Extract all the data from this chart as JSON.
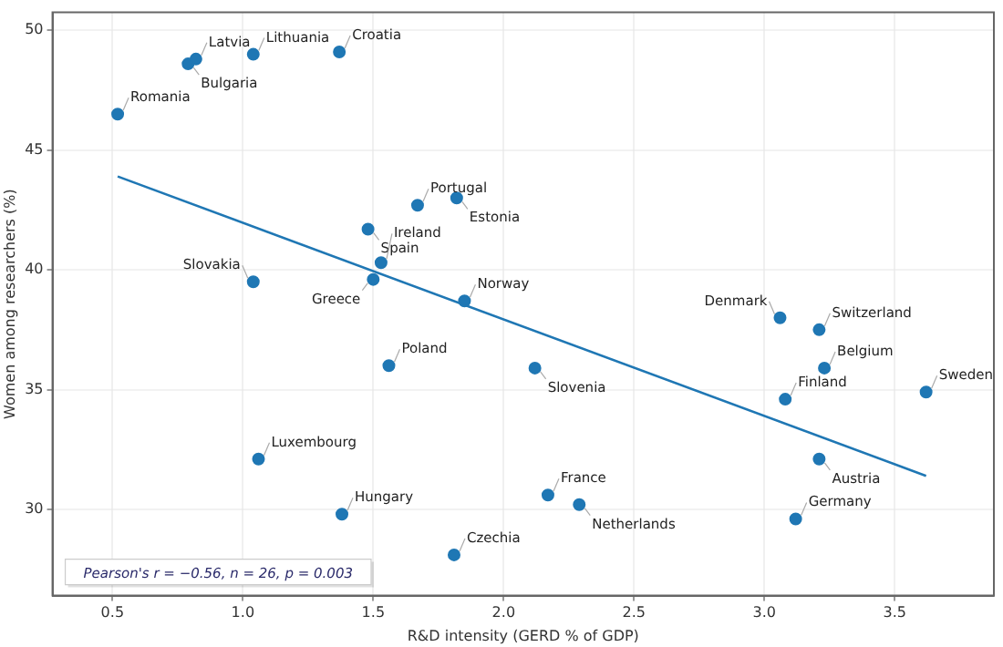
{
  "chart_data": {
    "type": "scatter",
    "xlabel": "R&D intensity (GERD % of GDP)",
    "ylabel": "Women among researchers (%)",
    "xlim": [
      0.27,
      3.88
    ],
    "ylim": [
      26.4,
      50.75
    ],
    "xticks": [
      0.5,
      {
        "value": 1,
        "label": "1.0"
      },
      1.5,
      {
        "value": 2,
        "label": "2.0"
      },
      2.5,
      {
        "value": 3,
        "label": "3.0"
      },
      3.5
    ],
    "yticks": [
      30,
      35,
      40,
      45,
      50
    ],
    "grid": true,
    "legend": false,
    "marker": "circle",
    "series": [
      {
        "type": "scatter",
        "color": "#1f77b4",
        "x": [
          0.52,
          0.79,
          0.82,
          1.04,
          1.37,
          1.67,
          1.82,
          1.48,
          1.53,
          1.5,
          1.04,
          1.85,
          1.56,
          1.06,
          1.38,
          1.81,
          2.12,
          2.17,
          2.29,
          3.12,
          3.21,
          3.08,
          3.23,
          3.21,
          3.06,
          3.62
        ],
        "values": [
          46.5,
          48.6,
          48.8,
          49.0,
          49.1,
          42.7,
          43.0,
          41.7,
          40.3,
          39.6,
          39.5,
          38.7,
          36.0,
          32.1,
          29.8,
          28.1,
          35.9,
          30.6,
          30.2,
          29.6,
          32.1,
          34.6,
          35.9,
          37.5,
          38.0,
          34.9
        ]
      },
      {
        "type": "line",
        "color": "#1f77b4",
        "marker": "none",
        "x": [
          0.52,
          3.62
        ],
        "values": [
          43.9,
          31.4
        ]
      }
    ],
    "annotations": [
      {
        "text": "Romania",
        "x": 0.52,
        "y": 46.5
      },
      {
        "text": "Bulgaria",
        "x": 0.79,
        "y": 48.6
      },
      {
        "text": "Latvia",
        "x": 0.82,
        "y": 48.8
      },
      {
        "text": "Lithuania",
        "x": 1.04,
        "y": 49.0
      },
      {
        "text": "Croatia",
        "x": 1.37,
        "y": 49.1
      },
      {
        "text": "Portugal",
        "x": 1.67,
        "y": 42.7
      },
      {
        "text": "Estonia",
        "x": 1.82,
        "y": 43.0
      },
      {
        "text": "Spain",
        "x": 1.48,
        "y": 41.7
      },
      {
        "text": "Ireland",
        "x": 1.53,
        "y": 40.3
      },
      {
        "text": "Greece",
        "x": 1.5,
        "y": 39.6
      },
      {
        "text": "Slovakia",
        "x": 1.04,
        "y": 39.5
      },
      {
        "text": "Norway",
        "x": 1.85,
        "y": 38.7
      },
      {
        "text": "Poland",
        "x": 1.56,
        "y": 36.0
      },
      {
        "text": "Luxembourg",
        "x": 1.06,
        "y": 32.1
      },
      {
        "text": "Hungary",
        "x": 1.38,
        "y": 29.8
      },
      {
        "text": "Czechia",
        "x": 1.81,
        "y": 28.1
      },
      {
        "text": "Slovenia",
        "x": 2.12,
        "y": 35.9
      },
      {
        "text": "France",
        "x": 2.17,
        "y": 30.6
      },
      {
        "text": "Netherlands",
        "x": 2.29,
        "y": 30.2
      },
      {
        "text": "Germany",
        "x": 3.12,
        "y": 29.6
      },
      {
        "text": "Austria",
        "x": 3.21,
        "y": 32.1
      },
      {
        "text": "Finland",
        "x": 3.08,
        "y": 34.6
      },
      {
        "text": "Belgium",
        "x": 3.23,
        "y": 35.9
      },
      {
        "text": "Switzerland",
        "x": 3.21,
        "y": 37.5
      },
      {
        "text": "Denmark",
        "x": 3.06,
        "y": 38.0
      },
      {
        "text": "Sweden",
        "x": 3.62,
        "y": 34.9
      },
      "Pearson's r = −0.56, n = 26, p = 0.003"
    ]
  }
}
